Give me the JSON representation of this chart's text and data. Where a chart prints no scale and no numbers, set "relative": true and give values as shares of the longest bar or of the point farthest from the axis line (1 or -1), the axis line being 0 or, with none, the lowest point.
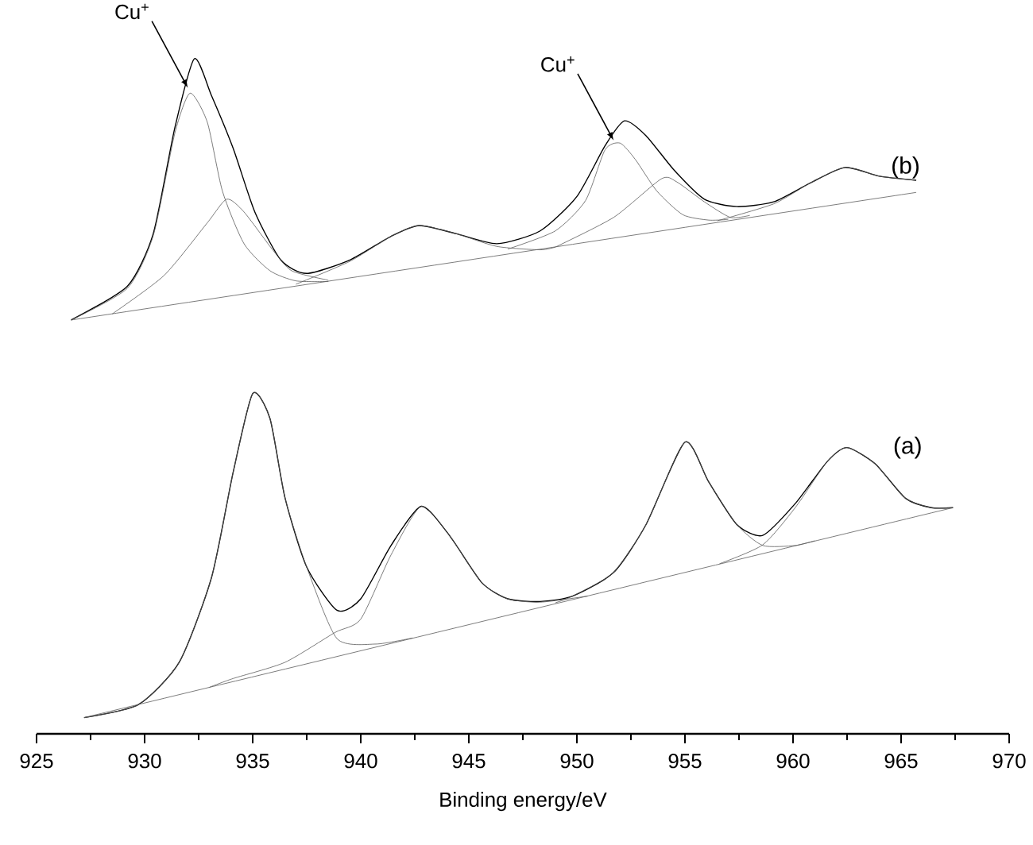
{
  "chart_data": {
    "type": "line",
    "relative": true,
    "xlabel": "Binding energy/eV",
    "xlim": [
      925,
      970
    ],
    "xticks": [
      925,
      930,
      935,
      940,
      945,
      950,
      955,
      960,
      965,
      970
    ],
    "annotations": [
      {
        "text": "Cu$^{+}$",
        "x": 932.0,
        "y": 0.957
      },
      {
        "text": "Cu$^{+}$",
        "x": 951.7,
        "y": 0.879
      }
    ],
    "series": [
      {
        "name": "(a)",
        "color": "#000000",
        "x": [
          927.2,
          929.7,
          931.6,
          933.1,
          934.1,
          935.0,
          935.8,
          936.5,
          937.5,
          938.9,
          940.0,
          941.4,
          942.8,
          944.1,
          945.6,
          946.8,
          948.3,
          949.8,
          951.7,
          953.2,
          955.0,
          956.1,
          957.4,
          958.6,
          960.1,
          961.6,
          962.5,
          963.8,
          965.2,
          966.4,
          967.4
        ],
        "values": [
          0.024,
          0.043,
          0.106,
          0.232,
          0.388,
          0.504,
          0.467,
          0.349,
          0.247,
          0.183,
          0.2,
          0.279,
          0.337,
          0.294,
          0.224,
          0.2,
          0.196,
          0.204,
          0.239,
          0.31,
          0.432,
          0.373,
          0.31,
          0.294,
          0.341,
          0.404,
          0.424,
          0.4,
          0.349,
          0.335,
          0.335
        ]
      },
      {
        "color": "#5a5a5a",
        "x": [
          927.2,
          967.4
        ],
        "values": [
          0.024,
          0.335
        ]
      },
      {
        "color": "#5a5a5a",
        "x": [
          927.2,
          929.7,
          931.6,
          933.1,
          934.1,
          935.0,
          935.8,
          936.5,
          937.5,
          938.9,
          940.7,
          942.4
        ],
        "values": [
          0.024,
          0.043,
          0.106,
          0.232,
          0.388,
          0.504,
          0.467,
          0.349,
          0.247,
          0.141,
          0.133,
          0.142
        ]
      },
      {
        "color": "#5a5a5a",
        "x": [
          933.0,
          934.1,
          936.5,
          938.8,
          940.0,
          941.4,
          942.8,
          944.1,
          945.6,
          946.8,
          948.3,
          950.5
        ],
        "values": [
          0.069,
          0.082,
          0.106,
          0.15,
          0.17,
          0.265,
          0.337,
          0.294,
          0.224,
          0.2,
          0.195,
          0.204
        ]
      },
      {
        "color": "#5a5a5a",
        "x": [
          949.0,
          949.8,
          951.7,
          953.2,
          955.0,
          956.1,
          957.4,
          958.6,
          960.1,
          961.0
        ],
        "values": [
          0.194,
          0.204,
          0.239,
          0.31,
          0.432,
          0.373,
          0.31,
          0.279,
          0.279,
          0.286
        ]
      },
      {
        "color": "#5a5a5a",
        "x": [
          956.6,
          958.6,
          960.1,
          961.6,
          962.5,
          963.8,
          965.2,
          966.4,
          967.4
        ],
        "values": [
          0.252,
          0.28,
          0.335,
          0.404,
          0.424,
          0.4,
          0.349,
          0.335,
          0.335
        ]
      },
      {
        "name": "(b)",
        "color": "#000000",
        "x": [
          926.6,
          929.2,
          930.4,
          931.4,
          932.3,
          933.1,
          934.1,
          935.1,
          936.3,
          937.5,
          939.5,
          941.4,
          942.7,
          944.4,
          946.3,
          948.3,
          950.0,
          951.3,
          952.2,
          953.2,
          954.5,
          955.9,
          957.4,
          959.1,
          960.8,
          962.4,
          964.0,
          965.7
        ],
        "values": [
          0.613,
          0.663,
          0.741,
          0.898,
          1,
          0.945,
          0.867,
          0.773,
          0.702,
          0.682,
          0.702,
          0.737,
          0.753,
          0.741,
          0.726,
          0.745,
          0.796,
          0.871,
          0.908,
          0.886,
          0.835,
          0.792,
          0.781,
          0.788,
          0.816,
          0.839,
          0.826,
          0.82
        ]
      },
      {
        "color": "#5a5a5a",
        "x": [
          926.6,
          965.7
        ],
        "values": [
          0.613,
          0.802
        ]
      },
      {
        "color": "#5a5a5a",
        "x": [
          926.6,
          929.2,
          930.4,
          931.4,
          932.1,
          932.9,
          933.6,
          934.6,
          935.8,
          937.0,
          938.5
        ],
        "values": [
          0.613,
          0.66,
          0.738,
          0.89,
          0.949,
          0.906,
          0.804,
          0.726,
          0.686,
          0.671,
          0.67
        ]
      },
      {
        "color": "#5a5a5a",
        "x": [
          928.5,
          930.9,
          932.9,
          933.8,
          934.6,
          935.9,
          936.8,
          938.5
        ],
        "values": [
          0.622,
          0.679,
          0.757,
          0.792,
          0.773,
          0.718,
          0.686,
          0.672
        ]
      },
      {
        "color": "#5a5a5a",
        "x": [
          937.0,
          939.5,
          941.4,
          942.7,
          944.4,
          946.3,
          948.3,
          949.0
        ],
        "values": [
          0.666,
          0.7,
          0.737,
          0.753,
          0.741,
          0.722,
          0.717,
          0.721
        ]
      },
      {
        "color": "#5a5a5a",
        "x": [
          946.8,
          949.0,
          950.4,
          951.3,
          952.0,
          952.7,
          953.7,
          954.9,
          956.1,
          957.0
        ],
        "values": [
          0.718,
          0.745,
          0.79,
          0.865,
          0.875,
          0.851,
          0.804,
          0.769,
          0.761,
          0.762
        ]
      },
      {
        "color": "#5a5a5a",
        "x": [
          949.0,
          951.7,
          953.9,
          954.6,
          955.9,
          957.1,
          958.0
        ],
        "values": [
          0.721,
          0.765,
          0.822,
          0.818,
          0.788,
          0.765,
          0.768
        ]
      },
      {
        "color": "#5a5a5a",
        "x": [
          956.5,
          959.1,
          960.8,
          962.4,
          964.0,
          965.7
        ],
        "values": [
          0.76,
          0.785,
          0.816,
          0.839,
          0.826,
          0.82
        ]
      }
    ]
  }
}
